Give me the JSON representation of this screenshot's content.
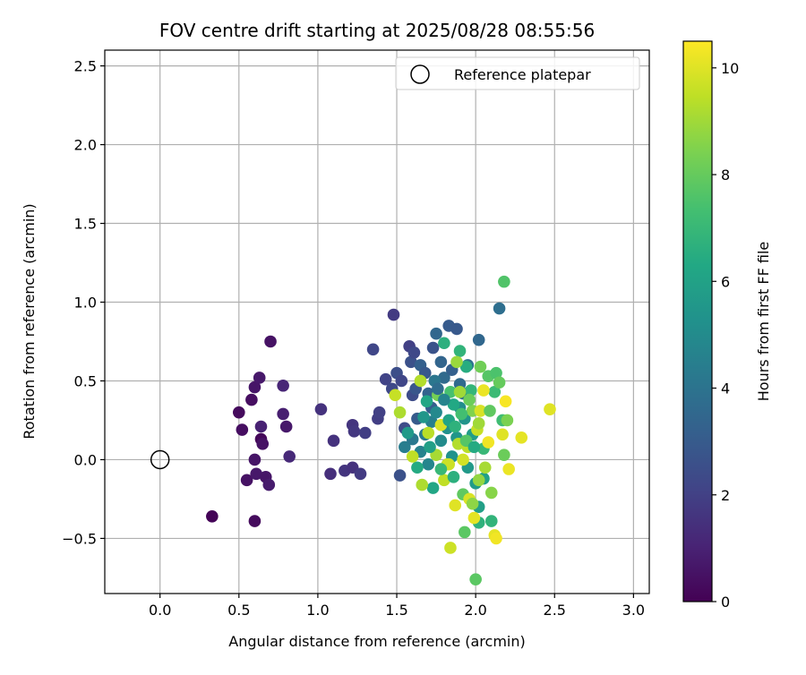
{
  "chart_data": {
    "type": "scatter",
    "title": "FOV centre drift starting at 2025/08/28 08:55:56",
    "xlabel": "Angular distance from reference (arcmin)",
    "ylabel": "Rotation from reference (arcmin)",
    "xlim": [
      -0.35,
      3.1
    ],
    "ylim": [
      -0.85,
      2.6
    ],
    "xticks": [
      0.0,
      0.5,
      1.0,
      1.5,
      2.0,
      2.5,
      3.0
    ],
    "xtick_labels": [
      "0.0",
      "0.5",
      "1.0",
      "1.5",
      "2.0",
      "2.5",
      "3.0"
    ],
    "yticks": [
      -0.5,
      0.0,
      0.5,
      1.0,
      1.5,
      2.0,
      2.5
    ],
    "ytick_labels": [
      "−0.5",
      "0.0",
      "0.5",
      "1.0",
      "1.5",
      "2.0",
      "2.5"
    ],
    "grid": true,
    "legend": {
      "position": "top-right",
      "entries": [
        "Reference platepar"
      ]
    },
    "reference_point": {
      "x": 0.0,
      "y": 0.0,
      "marker": "open-circle"
    },
    "colorbar": {
      "label": "Hours from first FF file",
      "colormap": "viridis",
      "range": [
        0,
        10.5
      ],
      "ticks": [
        0,
        2,
        4,
        6,
        8,
        10
      ],
      "tick_labels": [
        "0",
        "2",
        "4",
        "6",
        "8",
        "10"
      ]
    },
    "points": [
      {
        "x": 0.33,
        "y": -0.36,
        "h": 0.1
      },
      {
        "x": 0.6,
        "y": -0.39,
        "h": 0.3
      },
      {
        "x": 0.5,
        "y": 0.3,
        "h": 0.3
      },
      {
        "x": 0.52,
        "y": 0.19,
        "h": 0.4
      },
      {
        "x": 0.55,
        "y": -0.13,
        "h": 0.5
      },
      {
        "x": 0.6,
        "y": 0.0,
        "h": 0.6
      },
      {
        "x": 0.58,
        "y": 0.38,
        "h": 0.4
      },
      {
        "x": 0.6,
        "y": 0.46,
        "h": 0.6
      },
      {
        "x": 0.63,
        "y": 0.52,
        "h": 0.7
      },
      {
        "x": 0.64,
        "y": 0.13,
        "h": 0.2
      },
      {
        "x": 0.65,
        "y": 0.1,
        "h": 0.5
      },
      {
        "x": 0.61,
        "y": -0.09,
        "h": 0.7
      },
      {
        "x": 0.67,
        "y": -0.11,
        "h": 0.6
      },
      {
        "x": 0.69,
        "y": -0.16,
        "h": 0.8
      },
      {
        "x": 0.64,
        "y": 0.21,
        "h": 1.0
      },
      {
        "x": 0.7,
        "y": 0.75,
        "h": 0.5
      },
      {
        "x": 0.78,
        "y": 0.47,
        "h": 1.1
      },
      {
        "x": 0.78,
        "y": 0.29,
        "h": 0.9
      },
      {
        "x": 0.8,
        "y": 0.21,
        "h": 0.7
      },
      {
        "x": 0.82,
        "y": 0.02,
        "h": 1.2
      },
      {
        "x": 1.02,
        "y": 0.32,
        "h": 1.5
      },
      {
        "x": 1.08,
        "y": -0.09,
        "h": 1.4
      },
      {
        "x": 1.1,
        "y": 0.12,
        "h": 1.5
      },
      {
        "x": 1.17,
        "y": -0.07,
        "h": 1.6
      },
      {
        "x": 1.22,
        "y": -0.05,
        "h": 1.5
      },
      {
        "x": 1.22,
        "y": 0.22,
        "h": 1.6
      },
      {
        "x": 1.23,
        "y": 0.18,
        "h": 1.7
      },
      {
        "x": 1.27,
        "y": -0.09,
        "h": 1.8
      },
      {
        "x": 1.3,
        "y": 0.17,
        "h": 1.9
      },
      {
        "x": 1.35,
        "y": 0.7,
        "h": 2.2
      },
      {
        "x": 1.38,
        "y": 0.26,
        "h": 1.9
      },
      {
        "x": 1.39,
        "y": 0.3,
        "h": 2.0
      },
      {
        "x": 1.43,
        "y": 0.51,
        "h": 2.1
      },
      {
        "x": 1.48,
        "y": 0.92,
        "h": 1.8
      },
      {
        "x": 1.47,
        "y": 0.45,
        "h": 2.3
      },
      {
        "x": 1.5,
        "y": 0.55,
        "h": 2.5
      },
      {
        "x": 1.52,
        "y": -0.1,
        "h": 2.6
      },
      {
        "x": 1.53,
        "y": 0.5,
        "h": 2.2
      },
      {
        "x": 1.55,
        "y": 0.2,
        "h": 2.4
      },
      {
        "x": 1.58,
        "y": 0.72,
        "h": 2.0
      },
      {
        "x": 1.59,
        "y": 0.62,
        "h": 2.6
      },
      {
        "x": 1.6,
        "y": 0.41,
        "h": 2.4
      },
      {
        "x": 1.61,
        "y": 0.68,
        "h": 2.3
      },
      {
        "x": 1.62,
        "y": 0.45,
        "h": 2.8
      },
      {
        "x": 1.63,
        "y": 0.26,
        "h": 3.0
      },
      {
        "x": 1.65,
        "y": 0.6,
        "h": 3.2
      },
      {
        "x": 1.68,
        "y": 0.55,
        "h": 2.9
      },
      {
        "x": 1.7,
        "y": 0.42,
        "h": 3.3
      },
      {
        "x": 1.72,
        "y": 0.33,
        "h": 3.1
      },
      {
        "x": 1.73,
        "y": 0.71,
        "h": 2.7
      },
      {
        "x": 1.75,
        "y": 0.8,
        "h": 3.5
      },
      {
        "x": 1.78,
        "y": 0.62,
        "h": 3.4
      },
      {
        "x": 1.8,
        "y": 0.52,
        "h": 3.6
      },
      {
        "x": 1.83,
        "y": 0.85,
        "h": 3.0
      },
      {
        "x": 1.85,
        "y": 0.57,
        "h": 3.2
      },
      {
        "x": 1.88,
        "y": 0.83,
        "h": 2.9
      },
      {
        "x": 1.9,
        "y": 0.48,
        "h": 3.6
      },
      {
        "x": 1.92,
        "y": 0.42,
        "h": 3.8
      },
      {
        "x": 1.95,
        "y": 0.6,
        "h": 4.0
      },
      {
        "x": 2.02,
        "y": 0.76,
        "h": 3.5
      },
      {
        "x": 2.15,
        "y": 0.96,
        "h": 3.8
      },
      {
        "x": 1.55,
        "y": 0.08,
        "h": 4.4
      },
      {
        "x": 1.6,
        "y": 0.13,
        "h": 4.2
      },
      {
        "x": 1.65,
        "y": 0.05,
        "h": 4.6
      },
      {
        "x": 1.68,
        "y": 0.16,
        "h": 4.3
      },
      {
        "x": 1.7,
        "y": -0.03,
        "h": 4.8
      },
      {
        "x": 1.72,
        "y": 0.24,
        "h": 4.5
      },
      {
        "x": 1.75,
        "y": 0.3,
        "h": 4.9
      },
      {
        "x": 1.78,
        "y": 0.12,
        "h": 5.0
      },
      {
        "x": 1.82,
        "y": 0.2,
        "h": 5.2
      },
      {
        "x": 1.85,
        "y": 0.02,
        "h": 5.3
      },
      {
        "x": 1.88,
        "y": 0.14,
        "h": 5.5
      },
      {
        "x": 1.9,
        "y": 0.33,
        "h": 5.1
      },
      {
        "x": 1.93,
        "y": 0.26,
        "h": 5.4
      },
      {
        "x": 1.95,
        "y": -0.05,
        "h": 5.6
      },
      {
        "x": 1.98,
        "y": 0.16,
        "h": 5.8
      },
      {
        "x": 2.0,
        "y": -0.15,
        "h": 5.7
      },
      {
        "x": 2.02,
        "y": -0.3,
        "h": 5.9
      },
      {
        "x": 2.05,
        "y": -0.12,
        "h": 6.0
      },
      {
        "x": 1.57,
        "y": 0.17,
        "h": 5.6
      },
      {
        "x": 1.63,
        "y": -0.05,
        "h": 6.4
      },
      {
        "x": 1.73,
        "y": -0.18,
        "h": 6.2
      },
      {
        "x": 1.8,
        "y": 0.74,
        "h": 6.6
      },
      {
        "x": 1.86,
        "y": 0.35,
        "h": 6.3
      },
      {
        "x": 1.9,
        "y": 0.69,
        "h": 6.8
      },
      {
        "x": 1.94,
        "y": 0.59,
        "h": 6.5
      },
      {
        "x": 1.97,
        "y": 0.44,
        "h": 6.9
      },
      {
        "x": 2.02,
        "y": -0.4,
        "h": 6.7
      },
      {
        "x": 2.05,
        "y": 0.07,
        "h": 7.0
      },
      {
        "x": 2.1,
        "y": -0.39,
        "h": 6.8
      },
      {
        "x": 2.12,
        "y": 0.43,
        "h": 7.1
      },
      {
        "x": 2.17,
        "y": 0.25,
        "h": 7.2
      },
      {
        "x": 2.18,
        "y": 1.13,
        "h": 7.6
      },
      {
        "x": 2.0,
        "y": -0.76,
        "h": 7.8
      },
      {
        "x": 1.93,
        "y": -0.46,
        "h": 7.8
      },
      {
        "x": 1.92,
        "y": -0.22,
        "h": 7.9
      },
      {
        "x": 1.84,
        "y": 0.43,
        "h": 7.4
      },
      {
        "x": 2.08,
        "y": 0.53,
        "h": 7.7
      },
      {
        "x": 2.13,
        "y": 0.55,
        "h": 7.5
      },
      {
        "x": 2.15,
        "y": 0.49,
        "h": 8.0
      },
      {
        "x": 2.18,
        "y": 0.03,
        "h": 8.1
      },
      {
        "x": 2.2,
        "y": 0.25,
        "h": 8.4
      },
      {
        "x": 2.03,
        "y": 0.59,
        "h": 8.2
      },
      {
        "x": 1.98,
        "y": 0.31,
        "h": 8.5
      },
      {
        "x": 2.1,
        "y": -0.21,
        "h": 8.6
      },
      {
        "x": 2.02,
        "y": -0.13,
        "h": 8.8
      },
      {
        "x": 1.88,
        "y": 0.62,
        "h": 8.9
      },
      {
        "x": 1.9,
        "y": 0.43,
        "h": 9.0
      },
      {
        "x": 1.65,
        "y": 0.5,
        "h": 9.3
      },
      {
        "x": 1.66,
        "y": -0.16,
        "h": 9.2
      },
      {
        "x": 1.7,
        "y": 0.17,
        "h": 9.4
      },
      {
        "x": 1.75,
        "y": 0.03,
        "h": 9.1
      },
      {
        "x": 1.8,
        "y": -0.13,
        "h": 9.5
      },
      {
        "x": 1.82,
        "y": -0.03,
        "h": 9.6
      },
      {
        "x": 1.84,
        "y": -0.56,
        "h": 9.7
      },
      {
        "x": 1.87,
        "y": -0.29,
        "h": 10.0
      },
      {
        "x": 1.89,
        "y": 0.1,
        "h": 9.3
      },
      {
        "x": 1.92,
        "y": 0.0,
        "h": 9.8
      },
      {
        "x": 1.96,
        "y": -0.25,
        "h": 9.9
      },
      {
        "x": 1.99,
        "y": -0.37,
        "h": 10.1
      },
      {
        "x": 2.01,
        "y": 0.19,
        "h": 9.6
      },
      {
        "x": 2.03,
        "y": 0.31,
        "h": 9.9
      },
      {
        "x": 2.05,
        "y": 0.44,
        "h": 10.2
      },
      {
        "x": 2.08,
        "y": 0.11,
        "h": 10.3
      },
      {
        "x": 2.12,
        "y": -0.48,
        "h": 10.1
      },
      {
        "x": 2.13,
        "y": -0.5,
        "h": 10.3
      },
      {
        "x": 2.17,
        "y": 0.16,
        "h": 10.0
      },
      {
        "x": 2.19,
        "y": 0.37,
        "h": 10.4
      },
      {
        "x": 2.21,
        "y": -0.06,
        "h": 10.2
      },
      {
        "x": 2.29,
        "y": 0.14,
        "h": 10.1
      },
      {
        "x": 2.47,
        "y": 0.32,
        "h": 10.0
      },
      {
        "x": 1.49,
        "y": 0.41,
        "h": 9.6
      },
      {
        "x": 1.52,
        "y": 0.3,
        "h": 9.2
      },
      {
        "x": 1.6,
        "y": 0.02,
        "h": 9.5
      },
      {
        "x": 1.78,
        "y": 0.22,
        "h": 9.9
      },
      {
        "x": 1.83,
        "y": -0.03,
        "h": 9.7
      },
      {
        "x": 1.95,
        "y": 0.08,
        "h": 9.4
      },
      {
        "x": 2.02,
        "y": 0.23,
        "h": 9.0
      },
      {
        "x": 1.98,
        "y": -0.28,
        "h": 8.7
      },
      {
        "x": 2.06,
        "y": -0.05,
        "h": 9.1
      },
      {
        "x": 1.76,
        "y": 0.41,
        "h": 8.3
      },
      {
        "x": 1.74,
        "y": 0.5,
        "h": 4.1
      },
      {
        "x": 1.76,
        "y": 0.45,
        "h": 3.7
      },
      {
        "x": 1.8,
        "y": 0.38,
        "h": 4.7
      },
      {
        "x": 1.83,
        "y": 0.25,
        "h": 6.1
      },
      {
        "x": 1.87,
        "y": 0.21,
        "h": 6.7
      },
      {
        "x": 1.91,
        "y": 0.29,
        "h": 7.3
      },
      {
        "x": 1.94,
        "y": 0.12,
        "h": 7.7
      },
      {
        "x": 1.96,
        "y": 0.38,
        "h": 8.1
      },
      {
        "x": 1.99,
        "y": 0.08,
        "h": 6.4
      },
      {
        "x": 1.71,
        "y": 0.08,
        "h": 5.9
      },
      {
        "x": 1.67,
        "y": 0.27,
        "h": 5.5
      },
      {
        "x": 1.78,
        "y": -0.06,
        "h": 7.0
      },
      {
        "x": 1.86,
        "y": -0.11,
        "h": 6.6
      },
      {
        "x": 1.69,
        "y": 0.37,
        "h": 6.2
      },
      {
        "x": 2.09,
        "y": 0.31,
        "h": 7.9
      }
    ]
  }
}
